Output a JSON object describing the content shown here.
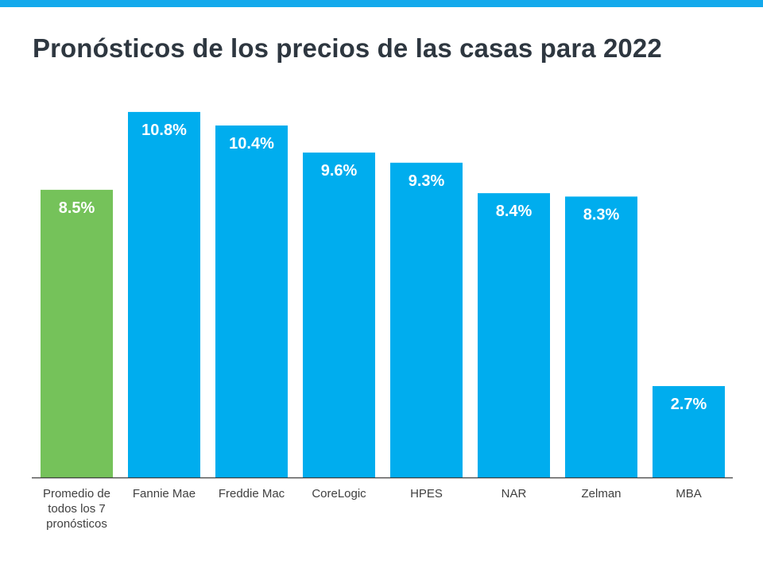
{
  "header": {
    "title": "Pronósticos de los precios de las casas para 2022"
  },
  "colors": {
    "top_strip": "#14a9ec",
    "highlight": "#75c25a",
    "bar": "#00adee",
    "axis": "#404040",
    "title": "#2e3740"
  },
  "chart_data": {
    "type": "bar",
    "title": "Pronósticos de los precios de las casas para 2022",
    "xlabel": "",
    "ylabel": "",
    "ylim": [
      0,
      11
    ],
    "grid": false,
    "categories": [
      [
        "Promedio de",
        "todos los 7",
        "pronósticos"
      ],
      [
        "Fannie Mae"
      ],
      [
        "Freddie Mac"
      ],
      [
        "CoreLogic"
      ],
      [
        "HPES"
      ],
      [
        "NAR"
      ],
      [
        "Zelman"
      ],
      [
        "MBA"
      ]
    ],
    "values": [
      8.5,
      10.8,
      10.4,
      9.6,
      9.3,
      8.4,
      8.3,
      2.7
    ],
    "data_labels": [
      "8.5%",
      "10.8%",
      "10.4%",
      "9.6%",
      "9.3%",
      "8.4%",
      "8.3%",
      "2.7%"
    ],
    "highlighted_index": 0
  }
}
